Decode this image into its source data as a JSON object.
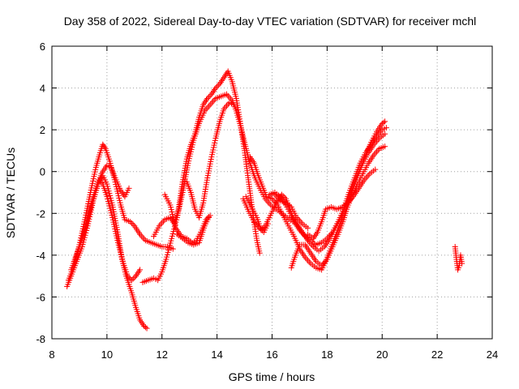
{
  "chart_data": {
    "type": "scatter",
    "title": "Day 358 of 2022, Sidereal Day-to-day VTEC variation (SDTVAR) for receiver mchl",
    "xlabel": "GPS time / hours",
    "ylabel": "SDTVAR / TECUs",
    "xlim": [
      8,
      24
    ],
    "ylim": [
      -8,
      6
    ],
    "xticks": [
      "8",
      "10",
      "12",
      "14",
      "16",
      "18",
      "20",
      "22",
      "24"
    ],
    "yticks": [
      "-8",
      "-6",
      "-4",
      "-2",
      "0",
      "2",
      "4",
      "6"
    ],
    "grid": true,
    "marker": "+",
    "color": "#ff0000",
    "series": [
      {
        "name": "arc-1",
        "points": [
          [
            8.55,
            -5.5
          ],
          [
            8.7,
            -5.0
          ],
          [
            8.9,
            -4.3
          ],
          [
            9.1,
            -3.6
          ],
          [
            9.3,
            -2.6
          ],
          [
            9.5,
            -1.4
          ],
          [
            9.7,
            -0.5
          ],
          [
            9.85,
            -0.2
          ],
          [
            10.0,
            -0.6
          ],
          [
            10.2,
            -1.6
          ],
          [
            10.4,
            -3.0
          ],
          [
            10.55,
            -4.2
          ],
          [
            10.7,
            -5.0
          ],
          [
            10.9,
            -5.8
          ],
          [
            11.05,
            -6.5
          ],
          [
            11.2,
            -7.1
          ],
          [
            11.35,
            -7.4
          ],
          [
            11.45,
            -7.5
          ]
        ]
      },
      {
        "name": "arc-2",
        "points": [
          [
            8.6,
            -5.2
          ],
          [
            8.8,
            -4.5
          ],
          [
            9.0,
            -3.5
          ],
          [
            9.2,
            -2.3
          ],
          [
            9.4,
            -1.0
          ],
          [
            9.6,
            0.2
          ],
          [
            9.75,
            0.9
          ],
          [
            9.85,
            1.3
          ],
          [
            9.95,
            1.1
          ],
          [
            10.1,
            0.5
          ],
          [
            10.3,
            -0.5
          ],
          [
            10.5,
            -1.6
          ],
          [
            10.65,
            -2.3
          ],
          [
            10.85,
            -2.4
          ],
          [
            11.0,
            -2.6
          ],
          [
            11.2,
            -3.0
          ],
          [
            11.4,
            -3.3
          ],
          [
            11.6,
            -3.4
          ],
          [
            11.8,
            -3.5
          ],
          [
            12.0,
            -3.6
          ],
          [
            12.2,
            -3.6
          ],
          [
            12.4,
            -3.7
          ]
        ]
      },
      {
        "name": "arc-3",
        "points": [
          [
            8.7,
            -4.7
          ],
          [
            8.9,
            -4.0
          ],
          [
            9.1,
            -3.2
          ],
          [
            9.3,
            -2.2
          ],
          [
            9.5,
            -1.2
          ],
          [
            9.7,
            -0.4
          ],
          [
            9.85,
            -0.6
          ],
          [
            10.0,
            -1.2
          ],
          [
            10.2,
            -2.2
          ],
          [
            10.4,
            -3.4
          ],
          [
            10.6,
            -4.4
          ],
          [
            10.75,
            -5.0
          ],
          [
            10.9,
            -5.2
          ],
          [
            11.05,
            -5.0
          ],
          [
            11.2,
            -4.7
          ]
        ]
      },
      {
        "name": "arc-4",
        "points": [
          [
            8.8,
            -4.3
          ],
          [
            9.0,
            -3.6
          ],
          [
            9.2,
            -2.8
          ],
          [
            9.4,
            -1.8
          ],
          [
            9.6,
            -0.9
          ],
          [
            9.8,
            -0.1
          ],
          [
            10.0,
            0.3
          ],
          [
            10.15,
            0.2
          ],
          [
            10.3,
            -0.3
          ],
          [
            10.5,
            -0.9
          ],
          [
            10.65,
            -1.2
          ],
          [
            10.8,
            -0.8
          ]
        ]
      },
      {
        "name": "arc-5",
        "points": [
          [
            11.3,
            -5.3
          ],
          [
            11.5,
            -5.2
          ],
          [
            11.7,
            -5.1
          ],
          [
            11.85,
            -5.2
          ],
          [
            12.0,
            -4.8
          ],
          [
            12.15,
            -4.2
          ],
          [
            12.35,
            -3.2
          ],
          [
            12.55,
            -2.2
          ],
          [
            12.75,
            -1.0
          ],
          [
            12.95,
            0.4
          ],
          [
            13.15,
            1.5
          ],
          [
            13.35,
            2.3
          ],
          [
            13.55,
            2.9
          ],
          [
            13.75,
            3.2
          ],
          [
            13.95,
            3.5
          ],
          [
            14.15,
            3.6
          ],
          [
            14.35,
            3.7
          ],
          [
            14.55,
            3.4
          ],
          [
            14.7,
            2.9
          ],
          [
            14.85,
            2.2
          ],
          [
            15.0,
            1.4
          ],
          [
            15.15,
            0.6
          ],
          [
            15.35,
            -0.2
          ],
          [
            15.55,
            -0.8
          ],
          [
            15.75,
            -1.3
          ],
          [
            15.95,
            -1.6
          ],
          [
            16.15,
            -1.8
          ],
          [
            16.35,
            -2.0
          ],
          [
            16.55,
            -2.2
          ],
          [
            16.75,
            -2.4
          ]
        ]
      },
      {
        "name": "arc-6",
        "points": [
          [
            11.7,
            -3.1
          ],
          [
            11.9,
            -2.6
          ],
          [
            12.1,
            -2.3
          ],
          [
            12.3,
            -2.2
          ],
          [
            12.45,
            -2.5
          ],
          [
            12.6,
            -1.8
          ],
          [
            12.75,
            -0.5
          ],
          [
            12.9,
            0.6
          ],
          [
            13.05,
            1.3
          ],
          [
            13.2,
            1.8
          ],
          [
            13.35,
            2.6
          ],
          [
            13.5,
            3.2
          ],
          [
            13.65,
            3.5
          ],
          [
            13.8,
            3.7
          ],
          [
            13.95,
            4.0
          ],
          [
            14.1,
            4.2
          ],
          [
            14.25,
            4.5
          ],
          [
            14.4,
            4.8
          ],
          [
            14.55,
            4.3
          ],
          [
            14.7,
            3.5
          ],
          [
            14.85,
            2.3
          ],
          [
            15.0,
            1.0
          ],
          [
            15.15,
            -0.5
          ],
          [
            15.3,
            -2.0
          ],
          [
            15.45,
            -3.3
          ],
          [
            15.55,
            -3.9
          ]
        ]
      },
      {
        "name": "arc-7",
        "points": [
          [
            12.1,
            -1.1
          ],
          [
            12.3,
            -1.6
          ],
          [
            12.5,
            -2.7
          ],
          [
            12.7,
            -3.1
          ],
          [
            12.9,
            -3.2
          ],
          [
            13.1,
            -3.4
          ],
          [
            13.25,
            -3.3
          ],
          [
            13.45,
            -2.8
          ],
          [
            13.6,
            -2.3
          ],
          [
            13.75,
            -2.1
          ]
        ]
      },
      {
        "name": "arc-8",
        "points": [
          [
            12.55,
            -3.0
          ],
          [
            12.75,
            -3.2
          ],
          [
            12.95,
            -3.4
          ],
          [
            13.15,
            -3.5
          ],
          [
            13.35,
            -3.4
          ],
          [
            13.55,
            -2.6
          ],
          [
            13.7,
            -2.2
          ]
        ]
      },
      {
        "name": "arc-9",
        "points": [
          [
            12.9,
            -0.5
          ],
          [
            13.05,
            -1.0
          ],
          [
            13.2,
            -1.8
          ],
          [
            13.35,
            -2.2
          ],
          [
            13.5,
            -1.5
          ],
          [
            13.65,
            -0.3
          ],
          [
            13.8,
            0.7
          ],
          [
            13.95,
            1.6
          ],
          [
            14.1,
            2.4
          ],
          [
            14.25,
            3.0
          ],
          [
            14.45,
            3.3
          ],
          [
            14.6,
            3.2
          ]
        ]
      },
      {
        "name": "arc-10",
        "points": [
          [
            15.05,
            -1.2
          ],
          [
            15.25,
            -1.7
          ],
          [
            15.45,
            -2.2
          ],
          [
            15.6,
            -2.8
          ],
          [
            15.75,
            -2.6
          ],
          [
            15.9,
            -2.2
          ],
          [
            16.05,
            -1.8
          ],
          [
            16.2,
            -1.4
          ],
          [
            16.35,
            -1.1
          ],
          [
            16.5,
            -1.3
          ],
          [
            16.65,
            -1.8
          ],
          [
            16.8,
            -2.4
          ],
          [
            17.0,
            -2.8
          ],
          [
            17.2,
            -3.1
          ],
          [
            17.4,
            -3.3
          ],
          [
            17.6,
            -3.5
          ],
          [
            17.8,
            -3.4
          ],
          [
            18.0,
            -3.2
          ],
          [
            18.2,
            -2.9
          ],
          [
            18.4,
            -2.4
          ],
          [
            18.6,
            -1.8
          ],
          [
            18.8,
            -1.0
          ],
          [
            19.0,
            -0.3
          ],
          [
            19.2,
            0.4
          ],
          [
            19.4,
            0.9
          ],
          [
            19.6,
            1.3
          ],
          [
            19.8,
            1.7
          ],
          [
            20.0,
            2.0
          ],
          [
            20.15,
            2.1
          ]
        ]
      },
      {
        "name": "arc-11",
        "points": [
          [
            15.2,
            0.7
          ],
          [
            15.35,
            0.4
          ],
          [
            15.5,
            -0.2
          ],
          [
            15.65,
            -0.7
          ],
          [
            15.8,
            -1.2
          ],
          [
            16.0,
            -1.3
          ],
          [
            16.2,
            -1.6
          ],
          [
            16.4,
            -2.1
          ],
          [
            16.6,
            -2.6
          ],
          [
            16.8,
            -3.1
          ],
          [
            17.0,
            -3.7
          ],
          [
            17.2,
            -4.1
          ],
          [
            17.4,
            -4.4
          ],
          [
            17.6,
            -4.6
          ],
          [
            17.8,
            -4.7
          ],
          [
            17.95,
            -4.3
          ],
          [
            18.1,
            -3.8
          ],
          [
            18.3,
            -3.1
          ],
          [
            18.5,
            -2.4
          ],
          [
            18.7,
            -1.8
          ],
          [
            18.9,
            -1.2
          ],
          [
            19.1,
            -0.6
          ],
          [
            19.3,
            -0.1
          ],
          [
            19.5,
            0.4
          ],
          [
            19.7,
            0.8
          ],
          [
            19.9,
            1.1
          ],
          [
            20.1,
            1.2
          ]
        ]
      },
      {
        "name": "arc-12",
        "points": [
          [
            15.9,
            -1.1
          ],
          [
            16.1,
            -1.0
          ],
          [
            16.3,
            -1.2
          ],
          [
            16.5,
            -1.6
          ],
          [
            16.7,
            -2.1
          ],
          [
            16.9,
            -2.5
          ],
          [
            17.1,
            -2.9
          ],
          [
            17.3,
            -3.3
          ],
          [
            17.5,
            -3.6
          ],
          [
            17.7,
            -3.8
          ],
          [
            17.9,
            -3.6
          ],
          [
            18.1,
            -3.2
          ],
          [
            18.3,
            -2.7
          ],
          [
            18.5,
            -2.2
          ],
          [
            18.7,
            -1.6
          ],
          [
            18.9,
            -0.8
          ],
          [
            19.1,
            -0.2
          ],
          [
            19.3,
            0.4
          ],
          [
            19.5,
            0.9
          ],
          [
            19.7,
            1.3
          ],
          [
            19.9,
            1.6
          ],
          [
            20.1,
            1.8
          ]
        ]
      },
      {
        "name": "arc-13",
        "points": [
          [
            16.7,
            -4.6
          ],
          [
            16.85,
            -4.0
          ],
          [
            17.0,
            -3.5
          ],
          [
            17.2,
            -3.5
          ],
          [
            17.4,
            -3.9
          ],
          [
            17.6,
            -4.3
          ],
          [
            17.8,
            -4.5
          ],
          [
            18.0,
            -4.2
          ],
          [
            18.2,
            -3.6
          ],
          [
            18.4,
            -3.0
          ],
          [
            18.6,
            -2.3
          ],
          [
            18.8,
            -1.4
          ],
          [
            19.0,
            -0.6
          ],
          [
            19.2,
            0.1
          ],
          [
            19.4,
            0.8
          ],
          [
            19.6,
            1.4
          ],
          [
            19.8,
            1.9
          ],
          [
            20.0,
            2.3
          ],
          [
            20.1,
            2.4
          ]
        ]
      },
      {
        "name": "arc-14",
        "points": [
          [
            17.3,
            -3.0
          ],
          [
            17.5,
            -3.2
          ],
          [
            17.65,
            -2.9
          ],
          [
            17.8,
            -2.4
          ],
          [
            17.95,
            -1.8
          ],
          [
            18.15,
            -1.7
          ],
          [
            18.35,
            -1.8
          ],
          [
            18.55,
            -1.7
          ],
          [
            18.75,
            -1.5
          ],
          [
            18.95,
            -1.2
          ],
          [
            19.15,
            -0.8
          ],
          [
            19.35,
            -0.4
          ],
          [
            19.55,
            -0.1
          ],
          [
            19.75,
            0.1
          ]
        ]
      },
      {
        "name": "arc-15",
        "points": [
          [
            14.95,
            -1.3
          ],
          [
            15.15,
            -1.9
          ],
          [
            15.35,
            -2.4
          ],
          [
            15.55,
            -2.7
          ],
          [
            15.7,
            -2.9
          ],
          [
            15.85,
            -2.5
          ]
        ]
      },
      {
        "name": "arc-16",
        "points": [
          [
            16.1,
            -1.1
          ],
          [
            16.3,
            -1.4
          ],
          [
            16.5,
            -1.5
          ],
          [
            16.7,
            -1.7
          ],
          [
            16.9,
            -2.2
          ],
          [
            17.1,
            -2.5
          ],
          [
            17.3,
            -2.7
          ]
        ]
      },
      {
        "name": "arc-17",
        "points": [
          [
            22.65,
            -3.6
          ],
          [
            22.7,
            -4.2
          ],
          [
            22.75,
            -4.7
          ],
          [
            22.8,
            -4.5
          ],
          [
            22.85,
            -4.0
          ],
          [
            22.9,
            -4.4
          ]
        ]
      }
    ]
  }
}
